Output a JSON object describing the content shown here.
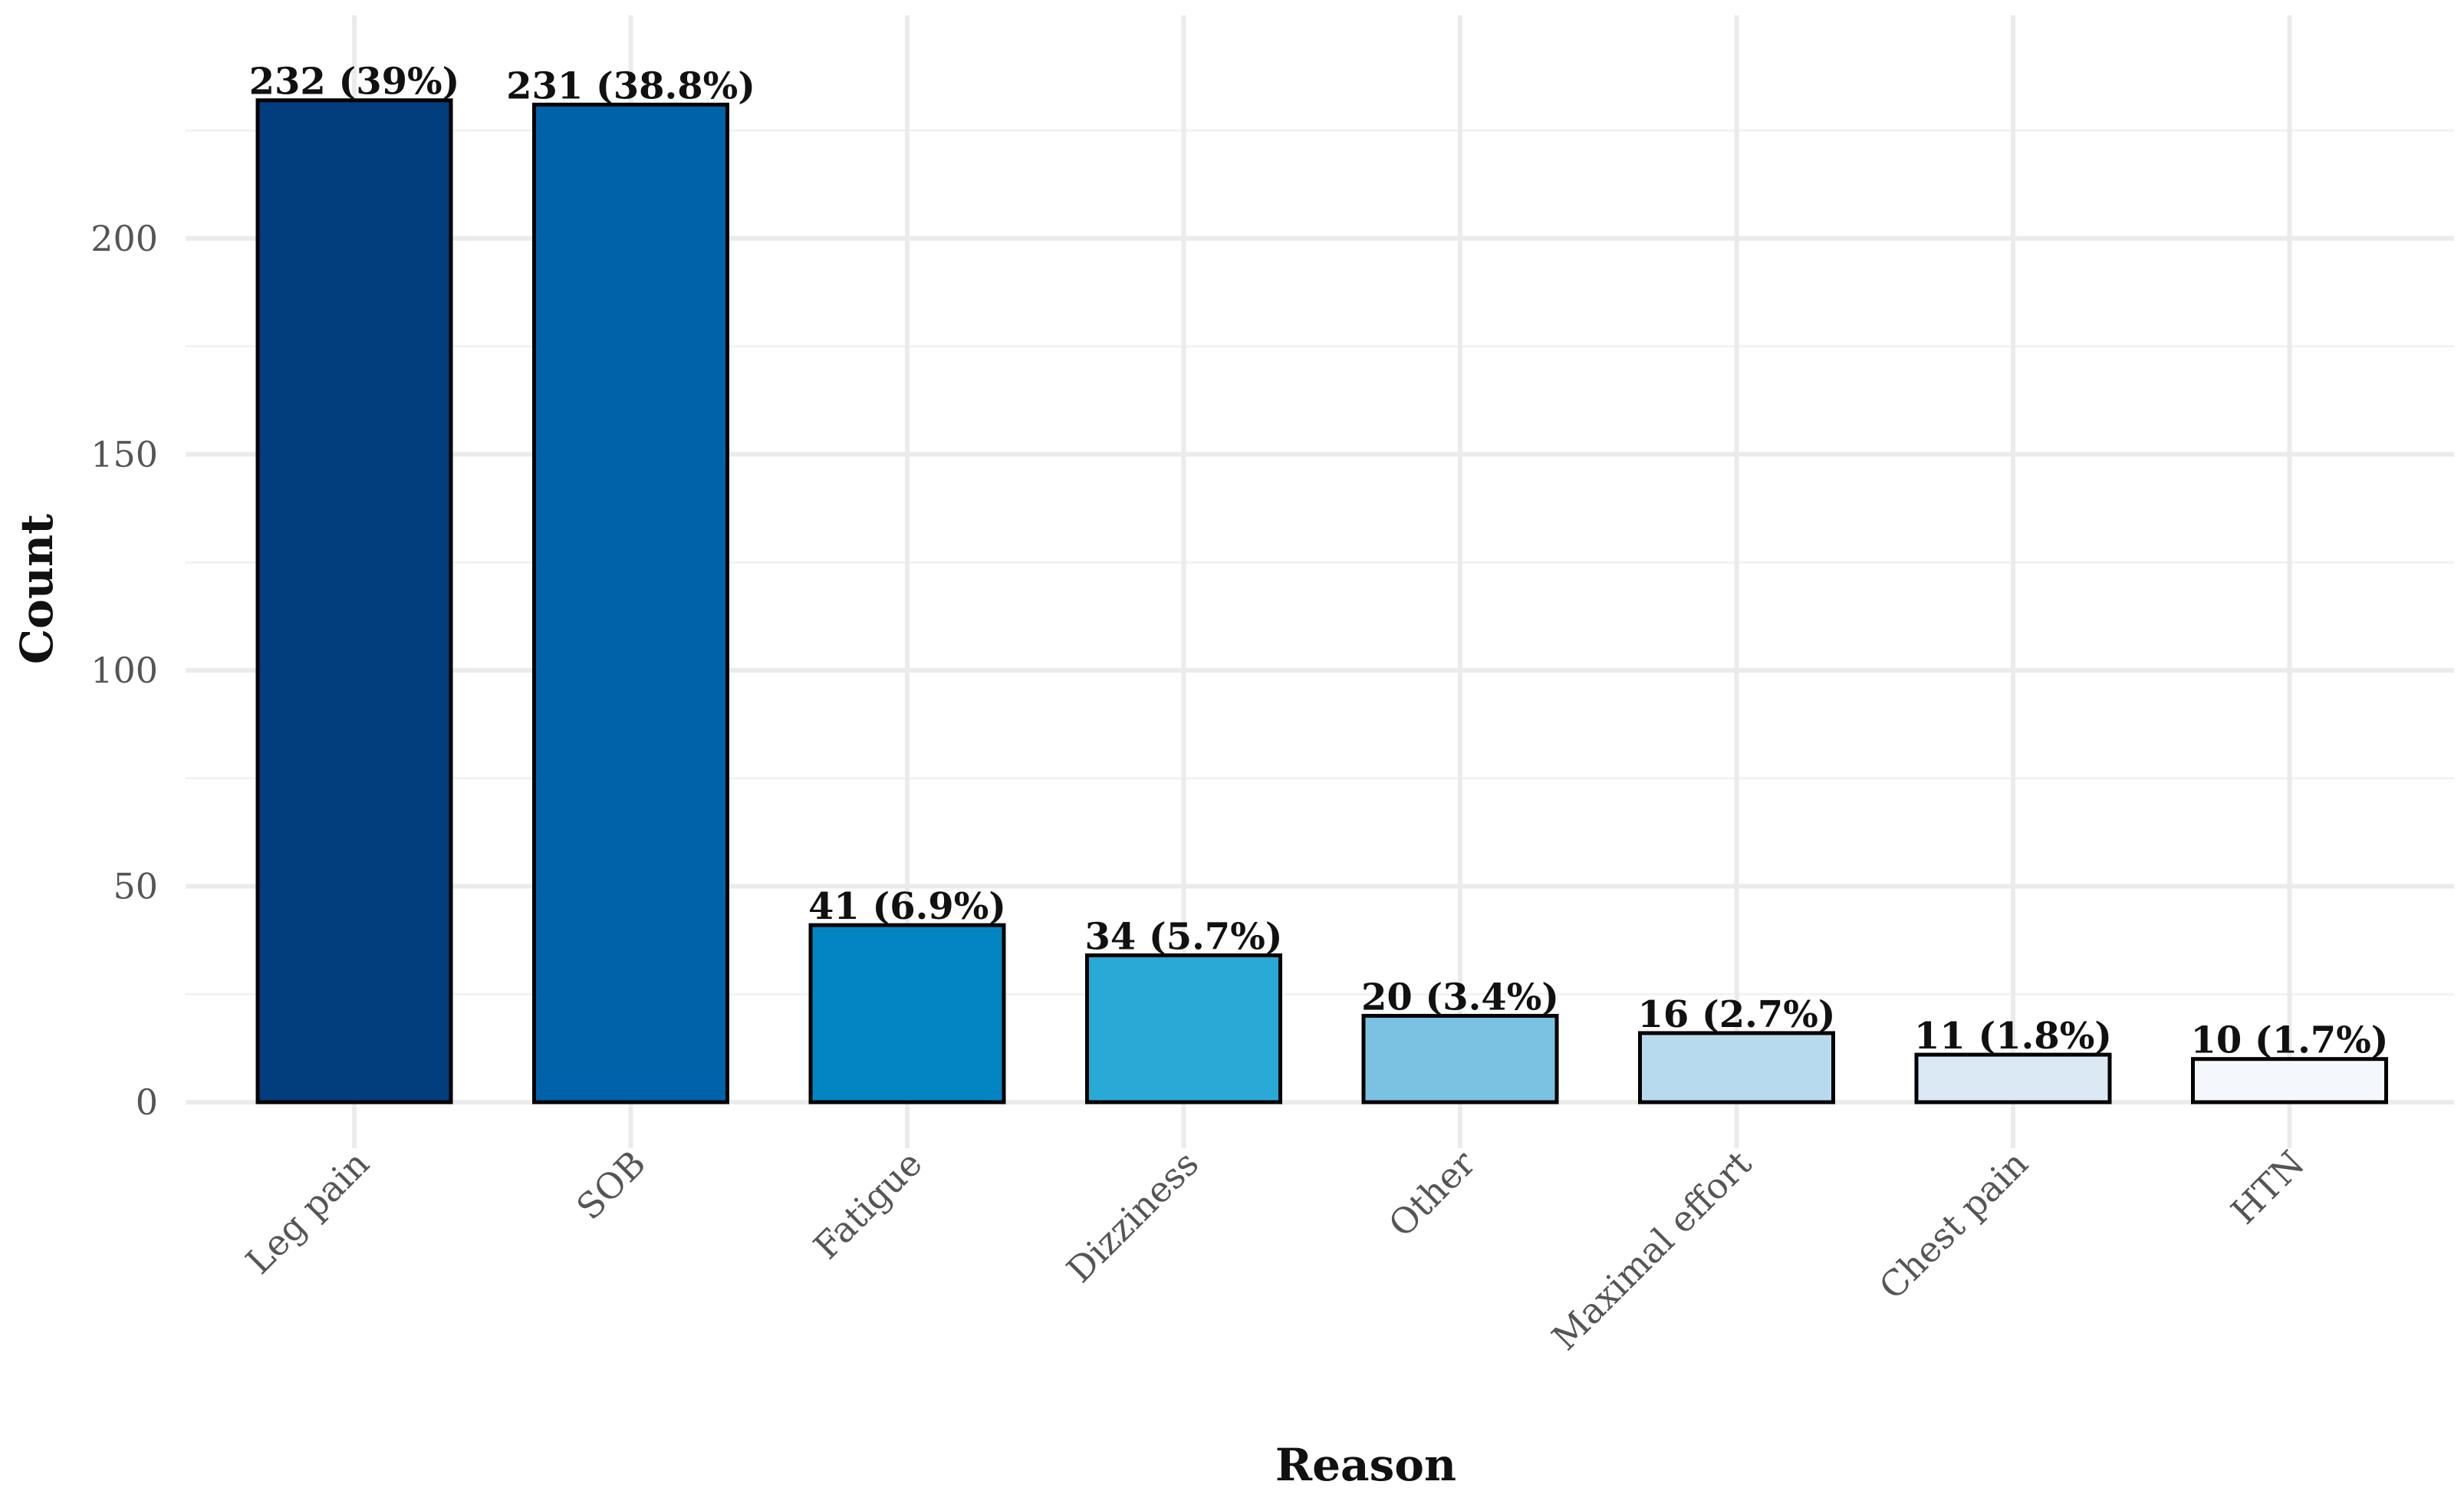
{
  "chart_data": {
    "type": "bar",
    "title": "",
    "xlabel": "Reason",
    "ylabel": "Count",
    "categories": [
      "Leg pain",
      "SOB",
      "Fatigue",
      "Dizziness",
      "Other",
      "Maximal effort",
      "Chest pain",
      "HTN"
    ],
    "values": [
      232,
      231,
      41,
      34,
      20,
      16,
      11,
      10
    ],
    "data_labels": [
      "232 (39%)",
      "231 (38.8%)",
      "41 (6.9%)",
      "34 (5.7%)",
      "20 (3.4%)",
      "16 (2.7%)",
      "11 (1.8%)",
      "10 (1.7%)"
    ],
    "colors": [
      "#023e7d",
      "#0063aa",
      "#0385c3",
      "#29a9d6",
      "#7bc2e2",
      "#b8daee",
      "#dbe9f5",
      "#f4f8fc"
    ],
    "y_ticks": [
      0,
      50,
      100,
      150,
      200
    ],
    "y_tick_labels": [
      "0",
      "50",
      "100",
      "150",
      "200"
    ],
    "ylim": [
      0,
      240
    ],
    "grid": true,
    "legend": "none"
  }
}
